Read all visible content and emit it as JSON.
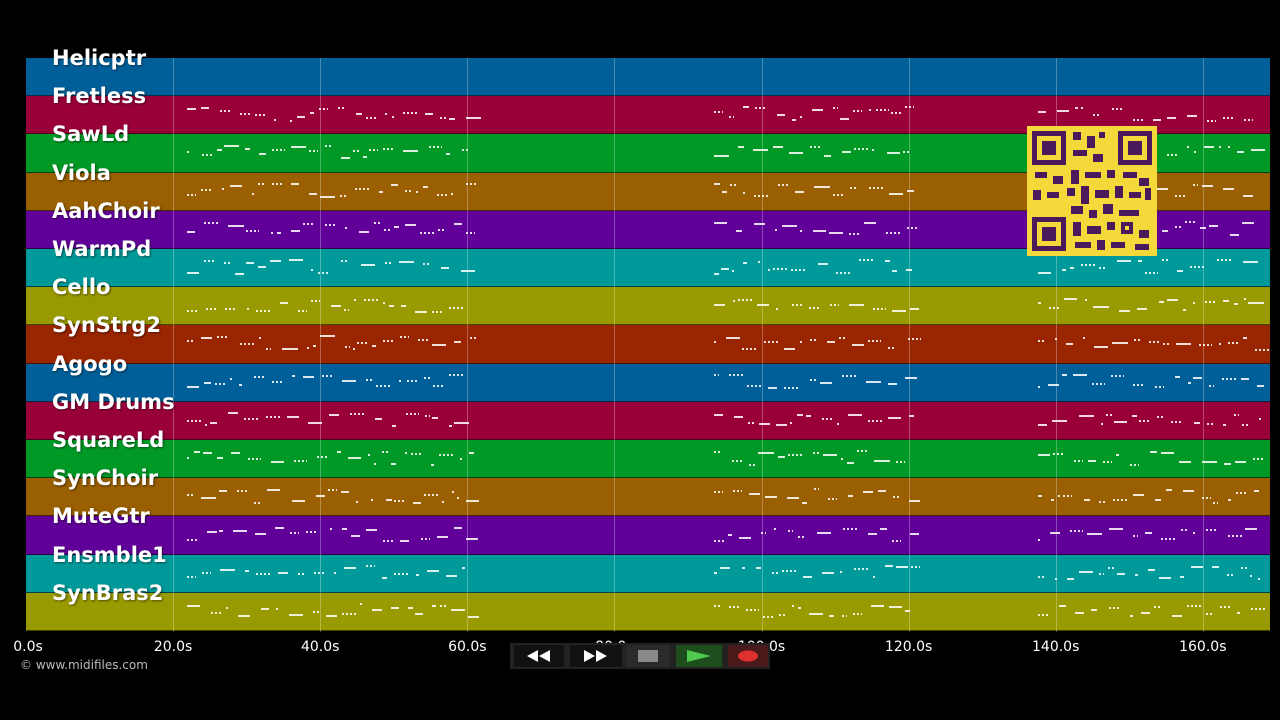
{
  "tracks": [
    {
      "name": "Helicptr",
      "color": "#005f99"
    },
    {
      "name": "Fretless",
      "color": "#99003a"
    },
    {
      "name": "SawLd",
      "color": "#009926"
    },
    {
      "name": "Viola",
      "color": "#995f00"
    },
    {
      "name": "AahChoir",
      "color": "#610099"
    },
    {
      "name": "WarmPd",
      "color": "#009999"
    },
    {
      "name": "Cello",
      "color": "#999900"
    },
    {
      "name": "SynStrg2",
      "color": "#992600"
    },
    {
      "name": "Agogo",
      "color": "#005f99"
    },
    {
      "name": "GM Drums",
      "color": "#99003a"
    },
    {
      "name": "SquareLd",
      "color": "#009926"
    },
    {
      "name": "SynChoir",
      "color": "#995f00"
    },
    {
      "name": "MuteGtr",
      "color": "#610099"
    },
    {
      "name": "Ensmble1",
      "color": "#009999"
    },
    {
      "name": "SynBras2",
      "color": "#999900"
    }
  ],
  "timeline": {
    "ticks": [
      "0.0s",
      "20.0s",
      "40.0s",
      "60.0s",
      "80.0s",
      "100.0s",
      "120.0s",
      "140.0s",
      "160.0s"
    ]
  },
  "footer": {
    "copyright": "© www.midifiles.com"
  },
  "transport": {
    "buttons": [
      "rewind-icon",
      "fast-forward-icon",
      "stop-icon",
      "play-icon",
      "record-icon"
    ]
  }
}
